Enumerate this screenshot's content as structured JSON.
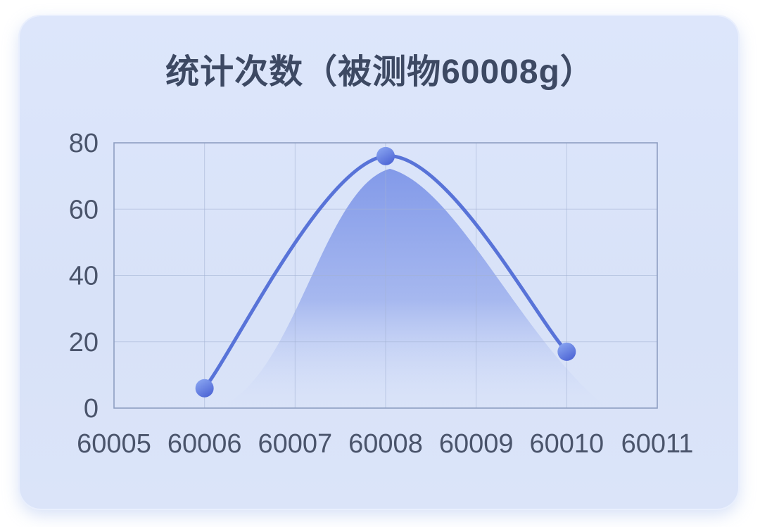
{
  "card": {
    "title": "统计次数（被测物60008g）"
  },
  "chart_data": {
    "type": "area",
    "title": "统计次数（被测物60008g）",
    "xlabel": "",
    "ylabel": "",
    "categories": [
      60005,
      60006,
      60007,
      60008,
      60009,
      60010,
      60011
    ],
    "series": [
      {
        "name": "统计次数",
        "points": [
          {
            "x": 60006,
            "y": 6
          },
          {
            "x": 60008,
            "y": 76
          },
          {
            "x": 60010,
            "y": 17
          }
        ]
      }
    ],
    "ylim": [
      0,
      80
    ],
    "yticks": [
      0,
      20,
      40,
      60,
      80
    ],
    "grid": true,
    "legend": "none",
    "colors": {
      "page_bg": "#ffffff",
      "card_bg": "#d9e2f8",
      "title_text": "#3d4963",
      "tick_text": "#4a546b",
      "grid_line": "#a3b2d3",
      "plot_border": "#8e9ec2",
      "line": "#5873d8",
      "area_top": "#7e96e8",
      "area_bottom": "#dbe4f9",
      "dot_light": "#8fabf4",
      "dot_dark": "#5068d6"
    }
  }
}
